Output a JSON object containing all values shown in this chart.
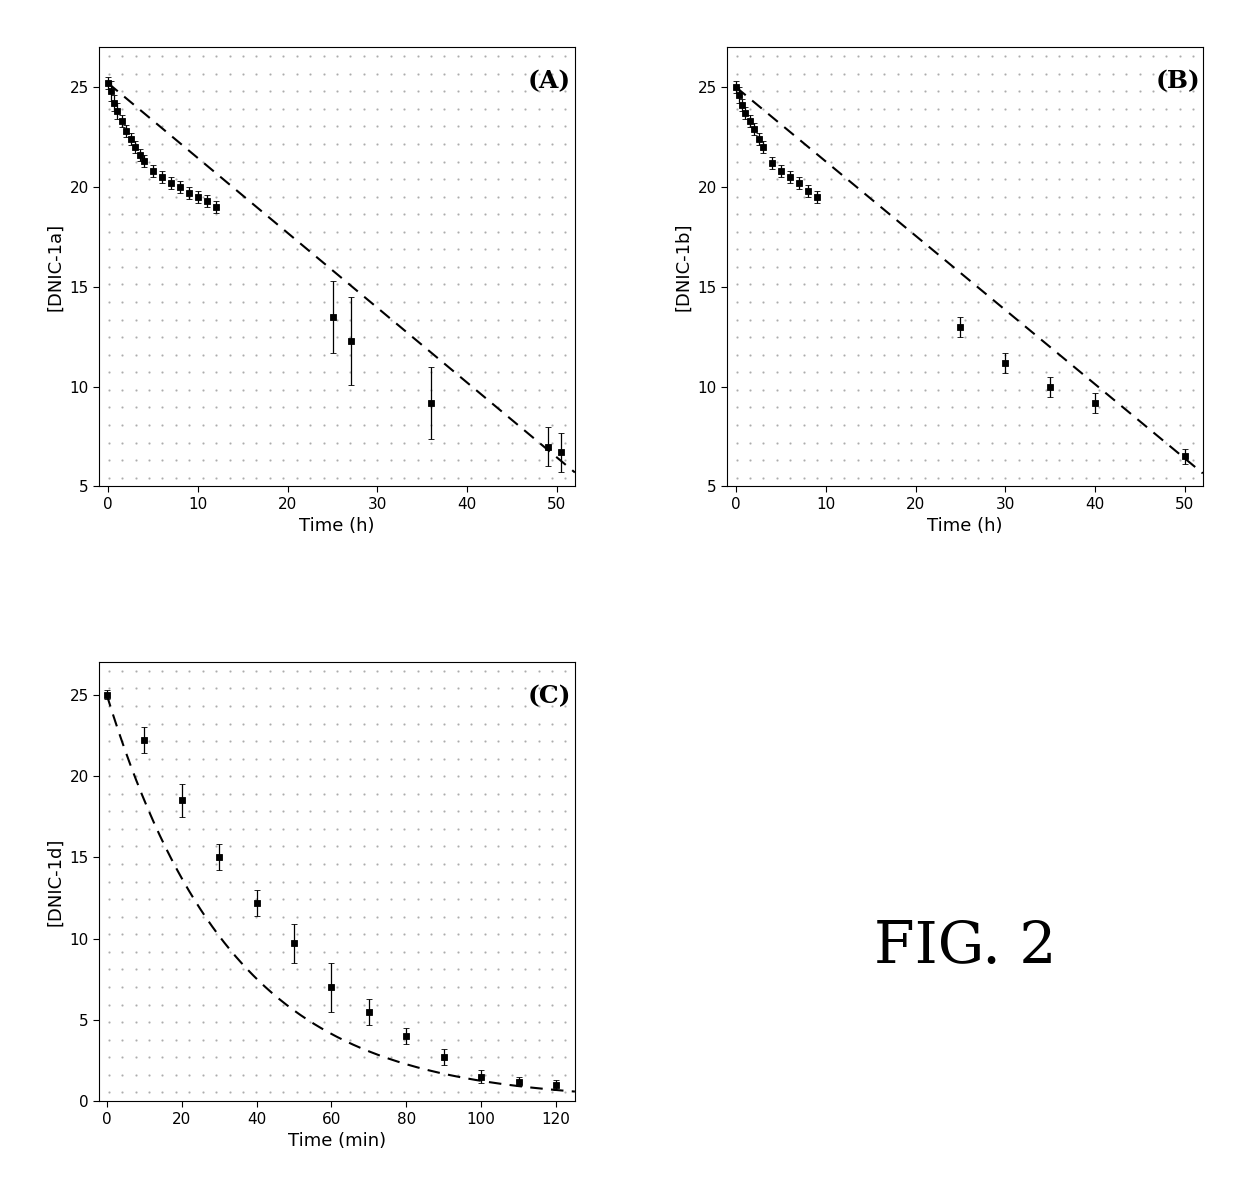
{
  "panel_A": {
    "label": "(A)",
    "ylabel": "[DNIC-1a]",
    "xlabel": "Time (h)",
    "xlim": [
      -1,
      52
    ],
    "ylim": [
      5,
      27
    ],
    "yticks": [
      5,
      10,
      15,
      20,
      25
    ],
    "xticks": [
      0,
      10,
      20,
      30,
      40,
      50
    ],
    "x_data": [
      0,
      0.3,
      0.7,
      1.0,
      1.5,
      2.0,
      2.5,
      3.0,
      3.5,
      4.0,
      5.0,
      6.0,
      7.0,
      8.0,
      9.0,
      10.0,
      11.0,
      12.0,
      25.0,
      27.0,
      36.0,
      49.0,
      50.5
    ],
    "y_data": [
      25.2,
      24.8,
      24.2,
      23.8,
      23.3,
      22.8,
      22.4,
      22.0,
      21.6,
      21.3,
      20.8,
      20.5,
      20.2,
      20.0,
      19.7,
      19.5,
      19.3,
      19.0,
      13.5,
      12.3,
      9.2,
      7.0,
      6.7
    ],
    "y_err": [
      0.3,
      0.5,
      0.4,
      0.4,
      0.3,
      0.3,
      0.3,
      0.3,
      0.3,
      0.3,
      0.3,
      0.3,
      0.3,
      0.3,
      0.3,
      0.3,
      0.3,
      0.3,
      1.8,
      2.2,
      1.8,
      1.0,
      1.0
    ],
    "fit_slope": -0.375,
    "fit_intercept": 25.2
  },
  "panel_B": {
    "label": "(B)",
    "ylabel": "[DNIC-1b]",
    "xlabel": "Time (h)",
    "xlim": [
      -1,
      52
    ],
    "ylim": [
      5,
      27
    ],
    "yticks": [
      5,
      10,
      15,
      20,
      25
    ],
    "xticks": [
      0,
      10,
      20,
      30,
      40,
      50
    ],
    "x_data": [
      0,
      0.3,
      0.7,
      1.0,
      1.5,
      2.0,
      2.5,
      3.0,
      4.0,
      5.0,
      6.0,
      7.0,
      8.0,
      9.0,
      25.0,
      30.0,
      35.0,
      40.0,
      50.0
    ],
    "y_data": [
      25.0,
      24.6,
      24.1,
      23.7,
      23.3,
      22.9,
      22.4,
      22.0,
      21.2,
      20.8,
      20.5,
      20.2,
      19.8,
      19.5,
      13.0,
      11.2,
      10.0,
      9.2,
      6.5
    ],
    "y_err": [
      0.3,
      0.4,
      0.3,
      0.3,
      0.3,
      0.3,
      0.3,
      0.3,
      0.3,
      0.3,
      0.3,
      0.3,
      0.3,
      0.3,
      0.5,
      0.5,
      0.5,
      0.5,
      0.4
    ],
    "fit_slope": -0.372,
    "fit_intercept": 25.0
  },
  "panel_C": {
    "label": "(C)",
    "ylabel": "[DNIC-1d]",
    "xlabel": "Time (min)",
    "xlim": [
      -2,
      125
    ],
    "ylim": [
      0,
      27
    ],
    "yticks": [
      0,
      5,
      10,
      15,
      20,
      25
    ],
    "xticks": [
      0,
      20,
      40,
      60,
      80,
      100,
      120
    ],
    "x_data": [
      0,
      10,
      20,
      30,
      40,
      50,
      60,
      70,
      80,
      90,
      100,
      110,
      120
    ],
    "y_data": [
      25.0,
      22.2,
      18.5,
      15.0,
      12.2,
      9.7,
      7.0,
      5.5,
      4.0,
      2.7,
      1.5,
      1.2,
      1.0
    ],
    "y_err": [
      0.3,
      0.8,
      1.0,
      0.8,
      0.8,
      1.2,
      1.5,
      0.8,
      0.5,
      0.5,
      0.4,
      0.3,
      0.3
    ],
    "fit_k": 0.03,
    "fit_y0": 25.0
  },
  "fig_label": "FIG. 2",
  "background_color": "#ffffff",
  "dot_color": "#000000",
  "line_color": "#000000",
  "marker": "s",
  "markersize": 5,
  "linewidth": 1.5,
  "label_fontsize": 18,
  "axis_fontsize": 13,
  "tick_fontsize": 11
}
